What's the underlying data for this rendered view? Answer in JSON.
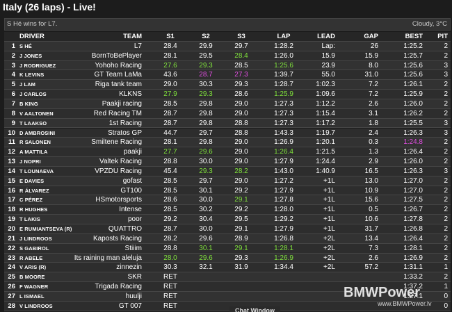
{
  "header": {
    "title": "Italy (26 laps) - Live!"
  },
  "status": {
    "message": "S Hé wins for L7.",
    "weather": "Cloudy, 3°C"
  },
  "table": {
    "columns": [
      "DRIVER",
      "TEAM",
      "S1",
      "S2",
      "S3",
      "LAP",
      "LEAD",
      "GAP",
      "BEST",
      "PIT"
    ],
    "personal_best_color": "#7fe03c",
    "overall_best_color": "#e24ee2",
    "rows": [
      {
        "pos": "1",
        "cells": [
          "S HÉ",
          "L7",
          "28.4",
          "29.9",
          "29.7",
          "1:28.2",
          "Lap:",
          "26",
          "1:25.2",
          "2"
        ]
      },
      {
        "pos": "2",
        "cells": [
          "J JONES",
          "BornToBePlayer",
          "28.1",
          "29.5",
          "28.4",
          "1:26.0",
          "15.9",
          "15.9",
          "1:25.7",
          "2"
        ],
        "personal_best": [
          4
        ]
      },
      {
        "pos": "3",
        "cells": [
          "J RODRIGUEZ",
          "Yohoho Racing",
          "27.6",
          "29.3",
          "28.5",
          "1:25.6",
          "23.9",
          "8.0",
          "1:25.6",
          "3"
        ],
        "personal_best": [
          2,
          3,
          5
        ]
      },
      {
        "pos": "4",
        "cells": [
          "K LEVINS",
          "GT Team LaMa",
          "43.6",
          "28.7",
          "27.3",
          "1:39.7",
          "55.0",
          "31.0",
          "1:25.6",
          "3"
        ],
        "overall_best": [
          3,
          4
        ]
      },
      {
        "pos": "5",
        "cells": [
          "J LAM",
          "Riga tank team",
          "29.0",
          "30.3",
          "29.3",
          "1:28.7",
          "1:02.3",
          "7.2",
          "1:26.1",
          "2"
        ]
      },
      {
        "pos": "6",
        "cells": [
          "J CARLOS",
          "KLKNS",
          "27.9",
          "29.3",
          "28.6",
          "1:25.9",
          "1:09.6",
          "7.2",
          "1:25.9",
          "2"
        ],
        "personal_best": [
          2,
          3,
          5
        ]
      },
      {
        "pos": "7",
        "cells": [
          "B KING",
          "Paakji racing",
          "28.5",
          "29.8",
          "29.0",
          "1:27.3",
          "1:12.2",
          "2.6",
          "1:26.0",
          "2"
        ]
      },
      {
        "pos": "8",
        "cells": [
          "V AALTONEN",
          "Red Racing TM",
          "28.7",
          "29.8",
          "29.0",
          "1:27.3",
          "1:15.4",
          "3.1",
          "1:26.2",
          "2"
        ]
      },
      {
        "pos": "9",
        "cells": [
          "T LAAKSO",
          "1st Racing",
          "28.7",
          "29.8",
          "28.8",
          "1:27.3",
          "1:17.2",
          "1.8",
          "1:25.5",
          "3"
        ]
      },
      {
        "pos": "10",
        "cells": [
          "D AMBROSINI",
          "Stratos GP",
          "44.7",
          "29.7",
          "28.8",
          "1:43.3",
          "1:19.7",
          "2.4",
          "1:26.3",
          "3"
        ]
      },
      {
        "pos": "11",
        "cells": [
          "R SALONEN",
          "Smiltene Racing",
          "28.1",
          "29.8",
          "29.0",
          "1:26.9",
          "1:20.1",
          "0.3",
          "1:24.8",
          "2"
        ],
        "overall_best": [
          8
        ]
      },
      {
        "pos": "12",
        "cells": [
          "A MATTILA",
          "paakji",
          "27.7",
          "29.6",
          "29.0",
          "1:26.4",
          "1:21.5",
          "1.3",
          "1:26.4",
          "2"
        ],
        "personal_best": [
          2,
          3,
          5
        ]
      },
      {
        "pos": "13",
        "cells": [
          "J NOPRI",
          "Valtek Racing",
          "28.8",
          "30.0",
          "29.0",
          "1:27.9",
          "1:24.4",
          "2.9",
          "1:26.0",
          "2"
        ]
      },
      {
        "pos": "14",
        "cells": [
          "T LOUNAEVA",
          "VPZDU Racing",
          "45.4",
          "29.3",
          "28.2",
          "1:43.0",
          "1:40.9",
          "16.5",
          "1:26.3",
          "3"
        ],
        "personal_best": [
          3,
          4
        ]
      },
      {
        "pos": "15",
        "cells": [
          "E DAVIES",
          "gofast",
          "28.5",
          "29.7",
          "29.0",
          "1:27.2",
          "+1L",
          "13.0",
          "1:27.0",
          "2"
        ]
      },
      {
        "pos": "16",
        "cells": [
          "R ÁLVAREZ",
          "GT100",
          "28.5",
          "30.1",
          "29.2",
          "1:27.9",
          "+1L",
          "10.9",
          "1:27.0",
          "2"
        ]
      },
      {
        "pos": "17",
        "cells": [
          "C PÉREZ",
          "HSmotorsports",
          "28.6",
          "30.0",
          "29.1",
          "1:27.8",
          "+1L",
          "15.6",
          "1:27.5",
          "2"
        ],
        "personal_best": [
          4
        ]
      },
      {
        "pos": "18",
        "cells": [
          "R HUGHES",
          "Intense",
          "28.5",
          "30.2",
          "29.2",
          "1:28.0",
          "+1L",
          "0.5",
          "1:26.7",
          "2"
        ]
      },
      {
        "pos": "19",
        "cells": [
          "T LAKIS",
          "poor",
          "29.2",
          "30.4",
          "29.5",
          "1:29.2",
          "+1L",
          "10.6",
          "1:27.8",
          "2"
        ]
      },
      {
        "pos": "20",
        "cells": [
          "E RUMIANTSEVA (R)",
          "QUATTRO",
          "28.7",
          "30.0",
          "29.1",
          "1:27.9",
          "+1L",
          "31.7",
          "1:26.8",
          "2"
        ]
      },
      {
        "pos": "21",
        "cells": [
          "J LINDROOS",
          "Kaposts Racing",
          "28.2",
          "29.6",
          "28.9",
          "1:26.8",
          "+2L",
          "13.4",
          "1:26.4",
          "2"
        ]
      },
      {
        "pos": "22",
        "cells": [
          "S GABIROL",
          "Stiiim",
          "28.8",
          "30.1",
          "29.1",
          "1:28.1",
          "+2L",
          "7.3",
          "1:28.1",
          "2"
        ],
        "personal_best": [
          3,
          4,
          5
        ]
      },
      {
        "pos": "23",
        "cells": [
          "R ABELE",
          "Its raining man aleluja",
          "28.0",
          "29.6",
          "29.3",
          "1:26.9",
          "+2L",
          "2.6",
          "1:26.9",
          "2"
        ],
        "personal_best": [
          2,
          3,
          5
        ]
      },
      {
        "pos": "24",
        "cells": [
          "V ARIS (R)",
          "zinnezin",
          "30.3",
          "32.1",
          "31.9",
          "1:34.4",
          "+2L",
          "57.2",
          "1:31.1",
          "1"
        ]
      },
      {
        "pos": "25",
        "cells": [
          "B MOORE",
          "SKR",
          "RET",
          null,
          null,
          null,
          null,
          null,
          "1:33.2",
          "2"
        ]
      },
      {
        "pos": "26",
        "cells": [
          "F WAGNER",
          "Trigada Racing",
          "RET",
          null,
          null,
          null,
          null,
          null,
          "1:37.2",
          "1"
        ]
      },
      {
        "pos": "27",
        "cells": [
          "L ISMAEL",
          "huulji",
          "RET",
          null,
          null,
          null,
          null,
          null,
          "1:27.1",
          "0"
        ]
      },
      {
        "pos": "28",
        "cells": [
          "V LINDROOS",
          "GT 007",
          "RET",
          null,
          null,
          null,
          null,
          null,
          null,
          "0"
        ]
      }
    ]
  },
  "watermark": {
    "logo": "BMWPower",
    "url": "www.BMWPower.lv"
  },
  "footer": {
    "tab": "Chat Window"
  }
}
